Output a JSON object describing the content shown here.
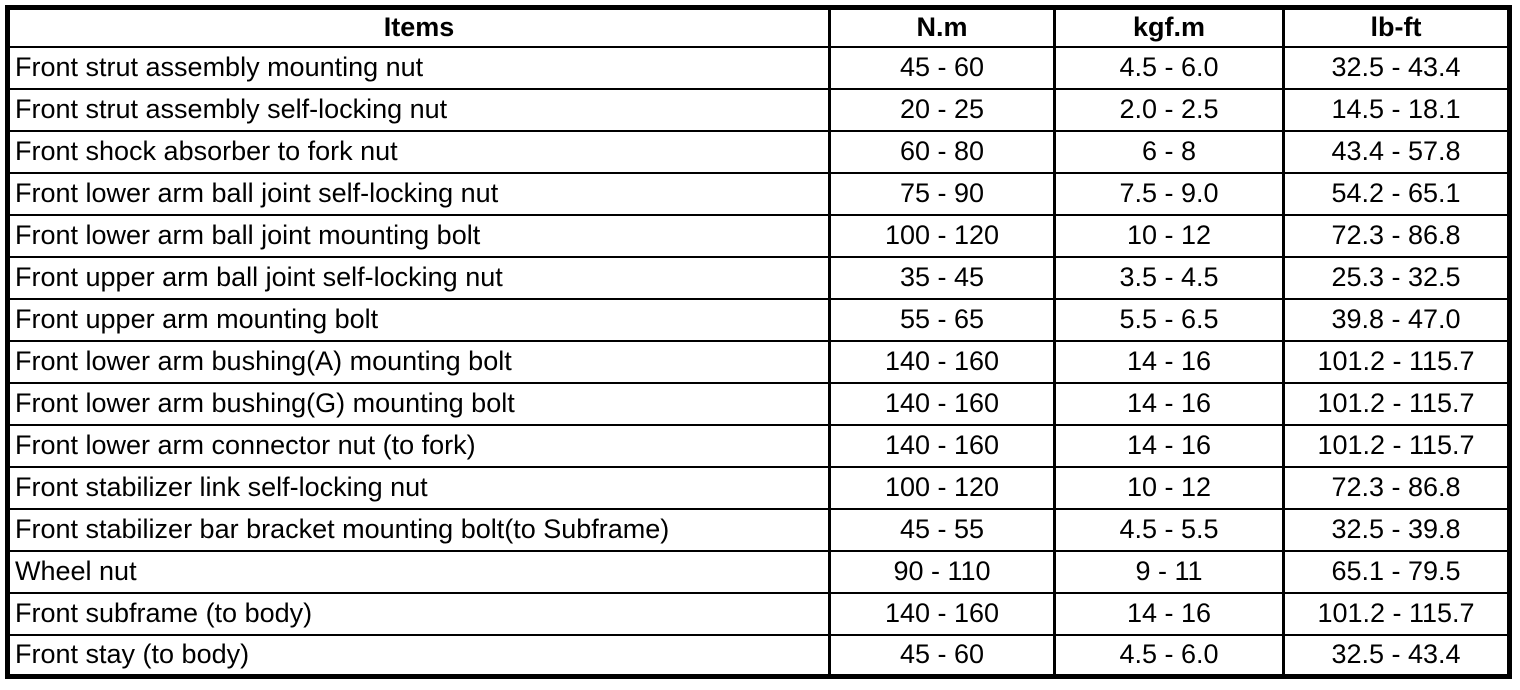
{
  "table": {
    "columns": [
      "Items",
      "N.m",
      "kgf.m",
      "lb-ft"
    ],
    "rows": [
      {
        "item": "Front strut assembly mounting nut",
        "nm": "45 - 60",
        "kgfm": "4.5 - 6.0",
        "lbft": "32.5 - 43.4"
      },
      {
        "item": "Front strut assembly self-locking nut",
        "nm": "20 - 25",
        "kgfm": "2.0 - 2.5",
        "lbft": "14.5 - 18.1"
      },
      {
        "item": "Front shock absorber to fork nut",
        "nm": "60 - 80",
        "kgfm": "6 - 8",
        "lbft": "43.4 - 57.8"
      },
      {
        "item": "Front lower arm ball joint self-locking nut",
        "nm": "75 - 90",
        "kgfm": "7.5 - 9.0",
        "lbft": "54.2 - 65.1"
      },
      {
        "item": "Front lower arm ball joint mounting bolt",
        "nm": "100 - 120",
        "kgfm": "10 - 12",
        "lbft": "72.3 - 86.8"
      },
      {
        "item": "Front upper arm ball joint self-locking nut",
        "nm": "35 - 45",
        "kgfm": "3.5 - 4.5",
        "lbft": "25.3 - 32.5"
      },
      {
        "item": "Front upper arm mounting bolt",
        "nm": "55 - 65",
        "kgfm": "5.5 - 6.5",
        "lbft": "39.8 - 47.0"
      },
      {
        "item": "Front lower arm bushing(A) mounting bolt",
        "nm": "140 - 160",
        "kgfm": "14 - 16",
        "lbft": "101.2 - 115.7"
      },
      {
        "item": "Front lower arm bushing(G) mounting bolt",
        "nm": "140 - 160",
        "kgfm": "14 - 16",
        "lbft": "101.2 - 115.7"
      },
      {
        "item": "Front lower arm connector nut (to fork)",
        "nm": "140 - 160",
        "kgfm": "14 - 16",
        "lbft": "101.2 - 115.7"
      },
      {
        "item": "Front stabilizer link self-locking nut",
        "nm": "100 - 120",
        "kgfm": "10 - 12",
        "lbft": "72.3 - 86.8"
      },
      {
        "item": "Front stabilizer bar bracket mounting bolt(to Subframe)",
        "nm": "45 - 55",
        "kgfm": "4.5 - 5.5",
        "lbft": "32.5 - 39.8"
      },
      {
        "item": "Wheel nut",
        "nm": "90 - 110",
        "kgfm": "9 - 11",
        "lbft": "65.1 - 79.5"
      },
      {
        "item": "Front subframe (to body)",
        "nm": "140 - 160",
        "kgfm": "14 - 16",
        "lbft": "101.2 - 115.7"
      },
      {
        "item": "Front stay (to body)",
        "nm": "45 - 60",
        "kgfm": "4.5 - 6.0",
        "lbft": "32.5 - 43.4"
      }
    ]
  }
}
